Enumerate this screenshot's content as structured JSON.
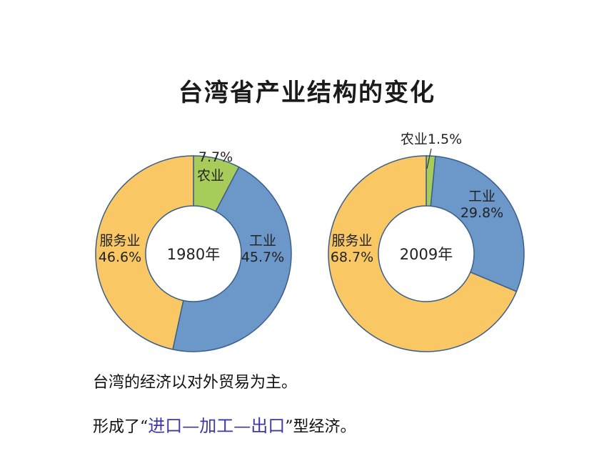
{
  "title": "台湾省产业结构的变化",
  "chart_data": [
    {
      "type": "pie",
      "center_label": "1980年",
      "slices": [
        {
          "name": "农业",
          "value": 7.7,
          "label": "7.7%",
          "color": "#a8cc5a"
        },
        {
          "name": "工业",
          "value": 45.7,
          "label": "45.7%",
          "color": "#6c97c9"
        },
        {
          "name": "服务业",
          "value": 46.6,
          "label": "46.6%",
          "color": "#f9c864"
        }
      ]
    },
    {
      "type": "pie",
      "center_label": "2009年",
      "slices": [
        {
          "name": "农业",
          "value": 1.5,
          "label": "1.5%",
          "color": "#a8cc5a"
        },
        {
          "name": "工业",
          "value": 29.8,
          "label": "29.8%",
          "color": "#6c97c9"
        },
        {
          "name": "服务业",
          "value": 68.7,
          "label": "68.7%",
          "color": "#f9c864"
        }
      ]
    }
  ],
  "text": {
    "line1": "台湾的经济以对外贸易为主。",
    "line2_prefix": "形成了“",
    "line2_highlight": "进口—加工—出口",
    "line2_suffix": "”型经济。"
  }
}
